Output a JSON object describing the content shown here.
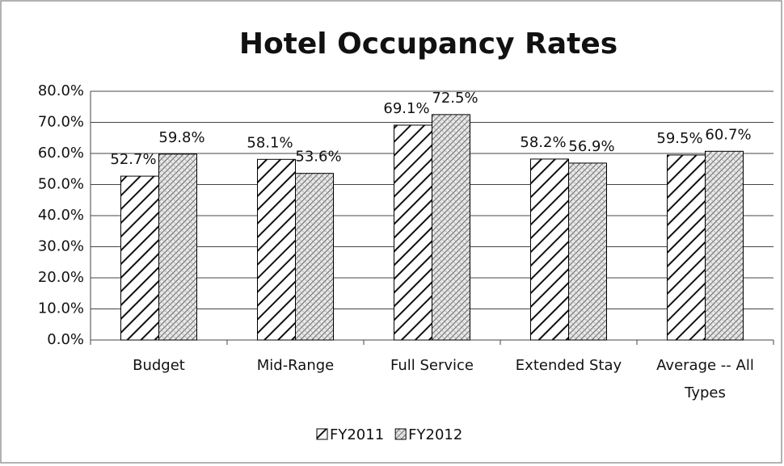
{
  "chart_data": {
    "type": "bar",
    "title": "Hotel Occupancy Rates",
    "categories": [
      "Budget",
      "Mid-Range",
      "Full Service",
      "Extended Stay",
      "Average -- All Types"
    ],
    "series": [
      {
        "name": "FY2011",
        "color": "#000000",
        "values": [
          52.7,
          58.1,
          69.1,
          58.2,
          59.5
        ],
        "value_labels": [
          "52.7%",
          "58.1%",
          "69.1%",
          "58.2%",
          "59.5%"
        ]
      },
      {
        "name": "FY2012",
        "color": "#000000",
        "values": [
          59.8,
          53.6,
          72.5,
          56.9,
          60.7
        ],
        "value_labels": [
          "59.8%",
          "53.6%",
          "72.5%",
          "56.9%",
          "60.7%"
        ]
      }
    ],
    "ylim": [
      0,
      80
    ],
    "yticks": [
      {
        "value": 0,
        "label": "0.0%"
      },
      {
        "value": 10,
        "label": "10.0%"
      },
      {
        "value": 20,
        "label": "20.0%"
      },
      {
        "value": 30,
        "label": "30.0%"
      },
      {
        "value": 40,
        "label": "40.0%"
      },
      {
        "value": 50,
        "label": "50.0%"
      },
      {
        "value": 60,
        "label": "60.0%"
      },
      {
        "value": 70,
        "label": "70.0%"
      },
      {
        "value": 80,
        "label": "80.0%"
      }
    ],
    "grid": true,
    "legend": "bottom"
  }
}
